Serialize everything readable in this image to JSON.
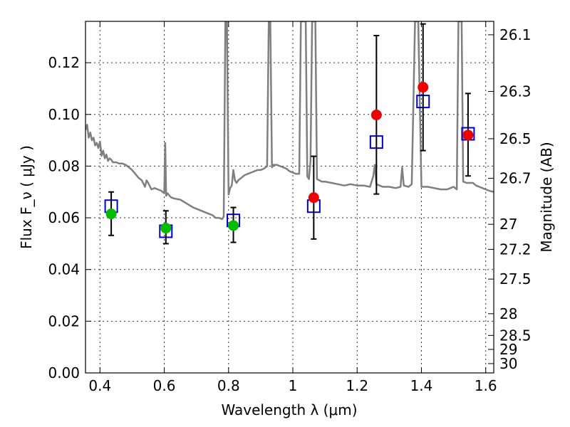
{
  "chart_data": {
    "type": "scatter",
    "xlabel": "Wavelength  λ (μm)",
    "ylabel": "Flux  F_ν ( μJy )",
    "ylabel_right": "Magnitude (AB)",
    "xlim": [
      0.355,
      1.625
    ],
    "ylim": [
      0.0,
      0.136
    ],
    "x_ticks": [
      0.4,
      0.6,
      0.8,
      1.0,
      1.2,
      1.4,
      1.6
    ],
    "x_tick_labels": [
      "0.4",
      "0.6",
      "0.8",
      "1",
      "1.2",
      "1.4",
      "1.6"
    ],
    "y_ticks": [
      0.0,
      0.02,
      0.04,
      0.06,
      0.08,
      0.1,
      0.12
    ],
    "y_tick_labels": [
      "0.00",
      "0.02",
      "0.04",
      "0.06",
      "0.08",
      "0.10",
      "0.12"
    ],
    "right_ticks": [
      {
        "label": "26.1",
        "flux": 0.1308
      },
      {
        "label": "26.3",
        "flux": 0.1089
      },
      {
        "label": "26.5",
        "flux": 0.0906
      },
      {
        "label": "26.7",
        "flux": 0.0753
      },
      {
        "label": "27",
        "flux": 0.0575
      },
      {
        "label": "27.2",
        "flux": 0.0478
      },
      {
        "label": "27.5",
        "flux": 0.0363
      },
      {
        "label": "28",
        "flux": 0.0229
      },
      {
        "label": "28.5",
        "flux": 0.0145
      },
      {
        "label": "29",
        "flux": 0.0091
      },
      {
        "label": "30",
        "flux": 0.0036
      }
    ],
    "grid": true,
    "spectrum": {
      "color": "#7f7f7f",
      "points": [
        [
          0.355,
          0.094
        ],
        [
          0.36,
          0.096
        ],
        [
          0.365,
          0.091
        ],
        [
          0.37,
          0.093
        ],
        [
          0.375,
          0.09
        ],
        [
          0.38,
          0.091
        ],
        [
          0.385,
          0.088
        ],
        [
          0.39,
          0.089
        ],
        [
          0.395,
          0.087
        ],
        [
          0.4,
          0.0895
        ],
        [
          0.405,
          0.084
        ],
        [
          0.41,
          0.086
        ],
        [
          0.415,
          0.083
        ],
        [
          0.42,
          0.0845
        ],
        [
          0.425,
          0.082
        ],
        [
          0.43,
          0.083
        ],
        [
          0.435,
          0.0825
        ],
        [
          0.44,
          0.0815
        ],
        [
          0.45,
          0.0815
        ],
        [
          0.46,
          0.081
        ],
        [
          0.47,
          0.081
        ],
        [
          0.48,
          0.0805
        ],
        [
          0.49,
          0.0795
        ],
        [
          0.5,
          0.0785
        ],
        [
          0.51,
          0.077
        ],
        [
          0.52,
          0.0755
        ],
        [
          0.53,
          0.0745
        ],
        [
          0.54,
          0.072
        ],
        [
          0.545,
          0.0745
        ],
        [
          0.55,
          0.0735
        ],
        [
          0.56,
          0.071
        ],
        [
          0.57,
          0.0715
        ],
        [
          0.58,
          0.071
        ],
        [
          0.59,
          0.0705
        ],
        [
          0.6,
          0.0695
        ],
        [
          0.603,
          0.089
        ],
        [
          0.606,
          0.0685
        ],
        [
          0.61,
          0.0695
        ],
        [
          0.62,
          0.068
        ],
        [
          0.63,
          0.0675
        ],
        [
          0.65,
          0.067
        ],
        [
          0.67,
          0.0655
        ],
        [
          0.69,
          0.064
        ],
        [
          0.71,
          0.063
        ],
        [
          0.73,
          0.062
        ],
        [
          0.75,
          0.061
        ],
        [
          0.76,
          0.06
        ],
        [
          0.77,
          0.06
        ],
        [
          0.78,
          0.0595
        ],
        [
          0.785,
          0.0605
        ],
        [
          0.79,
          0.136
        ],
        [
          0.795,
          0.136
        ],
        [
          0.8,
          0.069
        ],
        [
          0.805,
          0.0715
        ],
        [
          0.81,
          0.0725
        ],
        [
          0.815,
          0.0785
        ],
        [
          0.82,
          0.0745
        ],
        [
          0.825,
          0.0735
        ],
        [
          0.83,
          0.0745
        ],
        [
          0.84,
          0.0755
        ],
        [
          0.85,
          0.0765
        ],
        [
          0.86,
          0.077
        ],
        [
          0.87,
          0.0775
        ],
        [
          0.88,
          0.078
        ],
        [
          0.89,
          0.0785
        ],
        [
          0.9,
          0.0785
        ],
        [
          0.91,
          0.079
        ],
        [
          0.915,
          0.0795
        ],
        [
          0.92,
          0.08
        ],
        [
          0.925,
          0.136
        ],
        [
          0.93,
          0.136
        ],
        [
          0.935,
          0.0795
        ],
        [
          0.94,
          0.0805
        ],
        [
          0.95,
          0.0805
        ],
        [
          0.96,
          0.08
        ],
        [
          0.97,
          0.0795
        ],
        [
          0.98,
          0.079
        ],
        [
          0.99,
          0.078
        ],
        [
          1.0,
          0.0775
        ],
        [
          1.01,
          0.077
        ],
        [
          1.02,
          0.077
        ],
        [
          1.025,
          0.136
        ],
        [
          1.04,
          0.136
        ],
        [
          1.045,
          0.076
        ],
        [
          1.05,
          0.075
        ],
        [
          1.055,
          0.082
        ],
        [
          1.06,
          0.136
        ],
        [
          1.07,
          0.136
        ],
        [
          1.075,
          0.075
        ],
        [
          1.09,
          0.074
        ],
        [
          1.1,
          0.074
        ],
        [
          1.12,
          0.0735
        ],
        [
          1.14,
          0.073
        ],
        [
          1.16,
          0.0725
        ],
        [
          1.18,
          0.073
        ],
        [
          1.2,
          0.0725
        ],
        [
          1.22,
          0.0725
        ],
        [
          1.24,
          0.072
        ],
        [
          1.25,
          0.076
        ],
        [
          1.255,
          0.0805
        ],
        [
          1.26,
          0.073
        ],
        [
          1.28,
          0.072
        ],
        [
          1.3,
          0.072
        ],
        [
          1.32,
          0.0715
        ],
        [
          1.335,
          0.072
        ],
        [
          1.34,
          0.0795
        ],
        [
          1.345,
          0.0725
        ],
        [
          1.36,
          0.072
        ],
        [
          1.37,
          0.073
        ],
        [
          1.38,
          0.136
        ],
        [
          1.39,
          0.136
        ],
        [
          1.4,
          0.072
        ],
        [
          1.42,
          0.072
        ],
        [
          1.44,
          0.0715
        ],
        [
          1.46,
          0.071
        ],
        [
          1.48,
          0.071
        ],
        [
          1.49,
          0.0715
        ],
        [
          1.5,
          0.072
        ],
        [
          1.51,
          0.071
        ],
        [
          1.515,
          0.136
        ],
        [
          1.525,
          0.136
        ],
        [
          1.53,
          0.074
        ],
        [
          1.54,
          0.0735
        ],
        [
          1.55,
          0.0735
        ],
        [
          1.56,
          0.0735
        ],
        [
          1.57,
          0.0725
        ],
        [
          1.58,
          0.072
        ],
        [
          1.59,
          0.0715
        ],
        [
          1.6,
          0.071
        ],
        [
          1.61,
          0.0705
        ],
        [
          1.625,
          0.07
        ]
      ]
    },
    "model_points": {
      "color": "#0000cc",
      "points": [
        {
          "x": 0.435,
          "y": 0.0645
        },
        {
          "x": 0.605,
          "y": 0.0548
        },
        {
          "x": 0.815,
          "y": 0.059
        },
        {
          "x": 1.065,
          "y": 0.0645
        },
        {
          "x": 1.26,
          "y": 0.0893
        },
        {
          "x": 1.405,
          "y": 0.105
        },
        {
          "x": 1.545,
          "y": 0.0925
        }
      ]
    },
    "observed_points": [
      {
        "x": 0.435,
        "y": 0.0615,
        "lo": 0.0532,
        "hi": 0.07,
        "color": "#00bb00"
      },
      {
        "x": 0.605,
        "y": 0.056,
        "lo": 0.05,
        "hi": 0.0627,
        "color": "#00bb00"
      },
      {
        "x": 0.815,
        "y": 0.057,
        "lo": 0.0505,
        "hi": 0.064,
        "color": "#00bb00"
      },
      {
        "x": 1.065,
        "y": 0.0678,
        "lo": 0.0518,
        "hi": 0.0838,
        "color": "#ee0000"
      },
      {
        "x": 1.26,
        "y": 0.0998,
        "lo": 0.0692,
        "hi": 0.1305,
        "color": "#ee0000"
      },
      {
        "x": 1.405,
        "y": 0.1105,
        "lo": 0.086,
        "hi": 0.135,
        "color": "#ee0000"
      },
      {
        "x": 1.545,
        "y": 0.092,
        "lo": 0.0762,
        "hi": 0.1081,
        "color": "#ee0000"
      }
    ]
  }
}
